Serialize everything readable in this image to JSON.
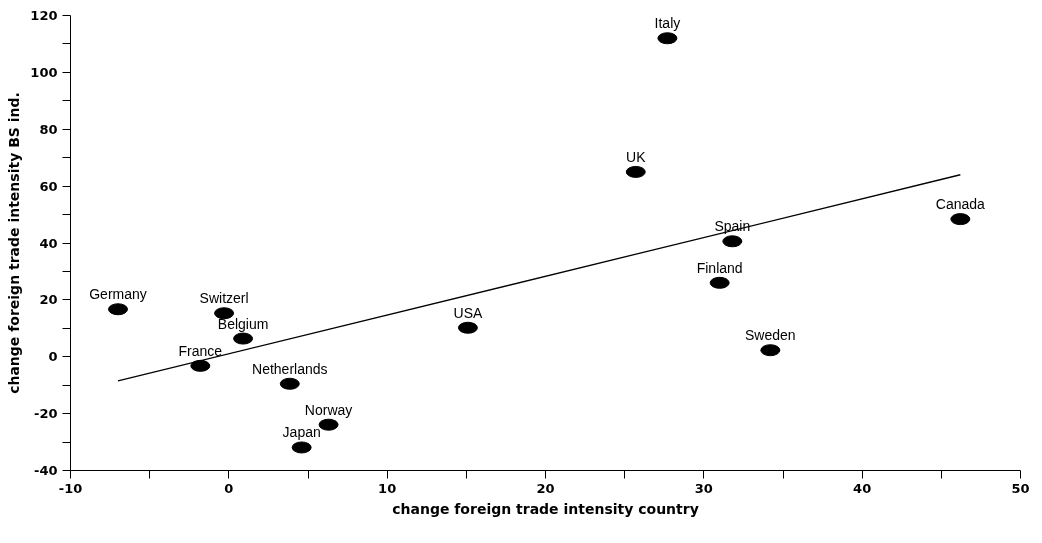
{
  "chart_data": {
    "type": "scatter",
    "xlabel": "change foreign trade intensity country",
    "ylabel": "change foreign trade intensity BS ind.",
    "series": [
      {
        "color": "#000000",
        "marker": "circle",
        "x": [
          27.7,
          25.7,
          46.2,
          31.8,
          31.0,
          34.2,
          15.1,
          -7.0,
          -0.3,
          0.9,
          -1.8,
          3.85,
          6.3,
          4.6
        ],
        "values": [
          112,
          65,
          48.4,
          40.6,
          26,
          2.3,
          10.2,
          16.7,
          15.3,
          6.4,
          -3.2,
          -9.5,
          -23.9,
          -31.9
        ]
      },
      {
        "type": "line",
        "marker": "none",
        "color": "#000000",
        "x": [
          -7.0,
          46.2
        ],
        "values": [
          -8.5,
          64
        ]
      }
    ],
    "annotations": [
      {
        "text": "Italy",
        "x": 27.7,
        "y": 112
      },
      {
        "text": "UK",
        "x": 25.7,
        "y": 65
      },
      {
        "text": "Canada",
        "x": 46.2,
        "y": 48.4
      },
      {
        "text": "Spain",
        "x": 31.8,
        "y": 40.6
      },
      {
        "text": "Finland",
        "x": 31.0,
        "y": 26
      },
      {
        "text": "Sweden",
        "x": 34.2,
        "y": 2.3
      },
      {
        "text": "USA",
        "x": 15.1,
        "y": 10.2
      },
      {
        "text": "Germany",
        "x": -7.0,
        "y": 16.7
      },
      {
        "text": "Switzerl",
        "x": -0.3,
        "y": 15.3
      },
      {
        "text": "Belgium",
        "x": 0.9,
        "y": 6.4
      },
      {
        "text": "France",
        "x": -1.8,
        "y": -3.2
      },
      {
        "text": "Netherlands",
        "x": 3.85,
        "y": -9.5
      },
      {
        "text": "Norway",
        "x": 6.3,
        "y": -23.9
      },
      {
        "text": "Japan",
        "x": 4.6,
        "y": -31.9
      }
    ],
    "xlim": [
      -10,
      50
    ],
    "ylim": [
      -40,
      120
    ],
    "xticks": [
      -10,
      {
        "value": -5,
        "label": null
      },
      0,
      {
        "value": 5,
        "label": null
      },
      10,
      {
        "value": 15,
        "label": null
      },
      20,
      {
        "value": 25,
        "label": null
      },
      30,
      {
        "value": 35,
        "label": null
      },
      40,
      {
        "value": 45,
        "label": null
      },
      50
    ],
    "yticks": [
      -40,
      {
        "value": -30,
        "label": null
      },
      -20,
      {
        "value": -10,
        "label": null
      },
      0,
      {
        "value": 10,
        "label": null
      },
      20,
      {
        "value": 30,
        "label": null
      },
      40,
      {
        "value": 50,
        "label": null
      },
      60,
      {
        "value": 70,
        "label": null
      },
      80,
      {
        "value": 90,
        "label": null
      },
      100,
      {
        "value": 110,
        "label": null
      },
      120
    ],
    "grid": false,
    "line_style": "solid"
  }
}
